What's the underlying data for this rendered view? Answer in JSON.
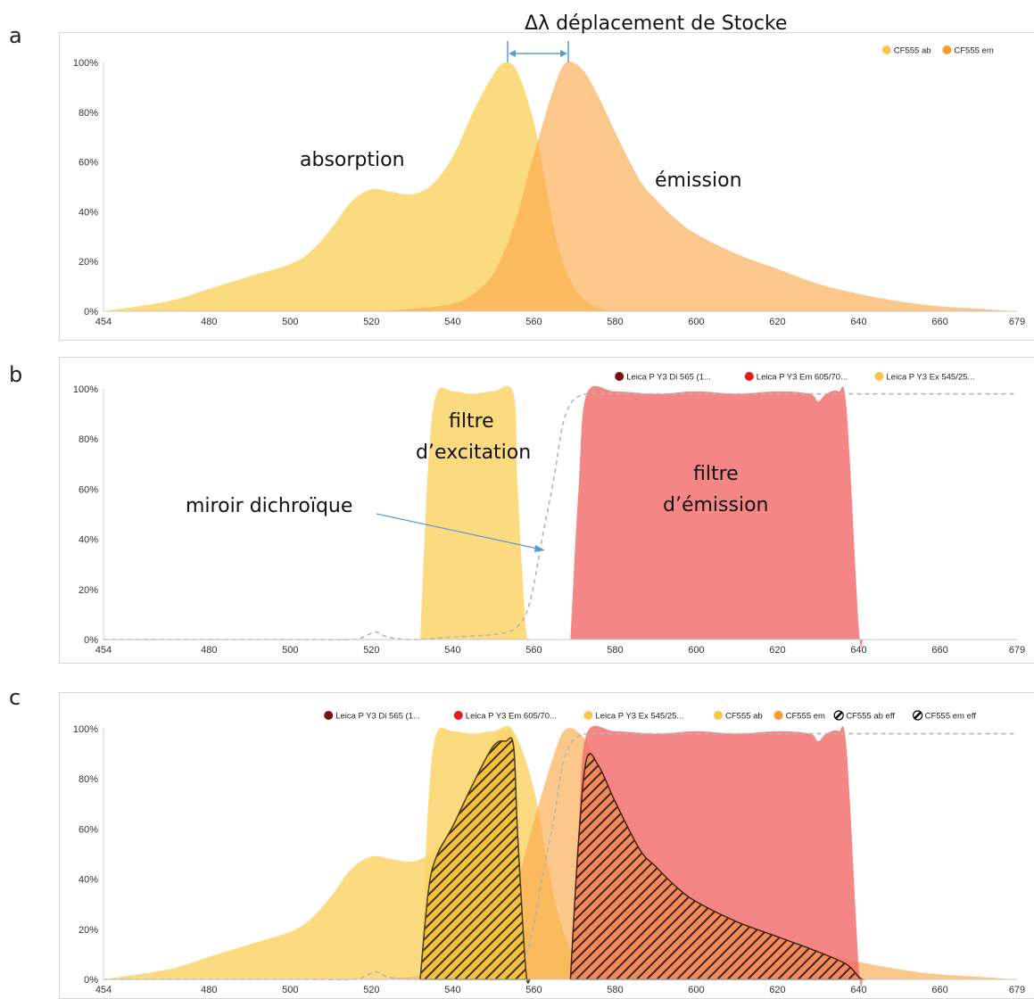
{
  "panels": [
    {
      "letter": "a",
      "chart_data": {
        "type": "area",
        "title": "",
        "xlim": [
          454,
          679
        ],
        "ylim": [
          0,
          100
        ],
        "x_ticks": [
          454,
          480,
          500,
          520,
          540,
          560,
          580,
          600,
          620,
          640,
          660,
          679
        ],
        "y_ticks": [
          "0%",
          "20%",
          "40%",
          "60%",
          "80%",
          "100%"
        ],
        "legend_position": "top-right",
        "legend": [
          {
            "label": "CF555 ab",
            "color": "#f7c64a"
          },
          {
            "label": "CF555 em",
            "color": "#f59a2b"
          }
        ],
        "series": [
          {
            "name": "CF555 ab",
            "color": "#fcd875",
            "x": [
              454,
              470,
              480,
              490,
              500,
              505,
              510,
              515,
              520,
              525,
              530,
              535,
              540,
              545,
              550,
              553,
              556,
              560,
              563,
              566,
              570,
              575,
              580
            ],
            "y": [
              0,
              4,
              9,
              14,
              19,
              24,
              33,
              44,
              49,
              48,
              47,
              51,
              62,
              80,
              95,
              100,
              96,
              76,
              50,
              26,
              9,
              2,
              0
            ]
          },
          {
            "name": "CF555 em",
            "color": "#fbb962",
            "x": [
              520,
              530,
              540,
              545,
              550,
              555,
              560,
              565,
              568,
              572,
              576,
              580,
              586,
              590,
              595,
              600,
              610,
              620,
              630,
              640,
              650,
              660,
              670,
              679
            ],
            "y": [
              0,
              1,
              3,
              7,
              15,
              34,
              63,
              90,
              100,
              97,
              86,
              72,
              53,
              45,
              37,
              31,
              23,
              17,
              11,
              7,
              4,
              2,
              1,
              0
            ]
          }
        ],
        "annotations": [
          "absorption",
          "émission",
          "Δλ  déplacement de Stocke"
        ]
      }
    },
    {
      "letter": "b",
      "chart_data": {
        "type": "area",
        "xlim": [
          454,
          679
        ],
        "ylim": [
          0,
          100
        ],
        "x_ticks": [
          454,
          480,
          500,
          520,
          540,
          560,
          580,
          600,
          620,
          640,
          660,
          679
        ],
        "y_ticks": [
          "0%",
          "20%",
          "40%",
          "60%",
          "80%",
          "100%"
        ],
        "legend_position": "top-right",
        "legend": [
          {
            "label": "Leica P Y3 Di 565 (1...",
            "color": "#7a1010"
          },
          {
            "label": "Leica P Y3 Em 605/70...",
            "color": "#e81c1c"
          },
          {
            "label": "Leica P Y3 Ex 545/25...",
            "color": "#f7c64a"
          }
        ],
        "series": [
          {
            "name": "Leica P Y3 Ex 545/25...",
            "color": "#fcd875",
            "x": [
              532,
              534,
              536,
              540,
              545,
              550,
              555,
              556,
              558,
              559
            ],
            "y": [
              0,
              70,
              98,
              99,
              98,
              99,
              98,
              60,
              5,
              0
            ]
          },
          {
            "name": "Leica P Y3 Em 605/70...",
            "color": "#f47c7c",
            "x": [
              569,
              571,
              573,
              580,
              590,
              600,
              610,
              620,
              628,
              630,
              632,
              635,
              637,
              640,
              641
            ],
            "y": [
              0,
              60,
              98,
              99,
              98,
              99,
              98,
              99,
              98,
              95,
              98,
              99,
              92,
              5,
              0
            ]
          },
          {
            "name": "Leica P Y3 Di 565 (1...",
            "color": "#bdbdbd",
            "x": [
              454,
              500,
              515,
              518,
              521,
              524,
              530,
              540,
              550,
              555,
              558,
              560,
              562,
              565,
              567,
              569,
              571,
              573,
              580,
              600,
              620,
              640,
              660,
              679
            ],
            "y": [
              0,
              0,
              0,
              1,
              3,
              1,
              0,
              1,
              2,
              4,
              10,
              22,
              40,
              65,
              85,
              94,
              97,
              98,
              98,
              98,
              98,
              98,
              98,
              98
            ]
          }
        ],
        "annotations": [
          "filtre",
          "d’excitation",
          "filtre",
          "d’émission",
          "miroir dichroïque"
        ]
      }
    },
    {
      "letter": "c",
      "chart_data": {
        "type": "area",
        "xlim": [
          454,
          679
        ],
        "ylim": [
          0,
          100
        ],
        "x_ticks": [
          454,
          480,
          500,
          520,
          540,
          560,
          580,
          600,
          620,
          640,
          660,
          679
        ],
        "y_ticks": [
          "0%",
          "20%",
          "40%",
          "60%",
          "80%",
          "100%"
        ],
        "legend_position": "top-right",
        "legend": [
          {
            "label": "Leica P Y3 Di 565 (1...",
            "color": "#7a1010"
          },
          {
            "label": "Leica P Y3 Em 605/70...",
            "color": "#e81c1c"
          },
          {
            "label": "Leica P Y3 Ex 545/25...",
            "color": "#f7c64a"
          },
          {
            "label": "CF555 ab",
            "color": "#f7c64a"
          },
          {
            "label": "CF555 em",
            "color": "#f59a2b"
          },
          {
            "label": "CF555 ab eff",
            "color": "#000000"
          },
          {
            "label": "CF555 em eff",
            "color": "#000000"
          }
        ],
        "series": [
          {
            "name": "CF555 ab eff",
            "color": "#5a4a20",
            "x": [
              532,
              534,
              536,
              540,
              545,
              550,
              553,
              555,
              556,
              558,
              559
            ],
            "y": [
              0,
              35,
              49,
              61,
              78,
              93,
              95,
              93,
              58,
              4,
              0
            ]
          },
          {
            "name": "CF555 em eff",
            "color": "#5a2a20",
            "x": [
              569,
              571,
              573,
              576,
              580,
              586,
              590,
              595,
              600,
              610,
              620,
              630,
              637,
              640,
              641
            ],
            "y": [
              0,
              55,
              88,
              85,
              71,
              52,
              45,
              37,
              31,
              23,
              17,
              11,
              6,
              1,
              0
            ]
          }
        ]
      }
    }
  ]
}
